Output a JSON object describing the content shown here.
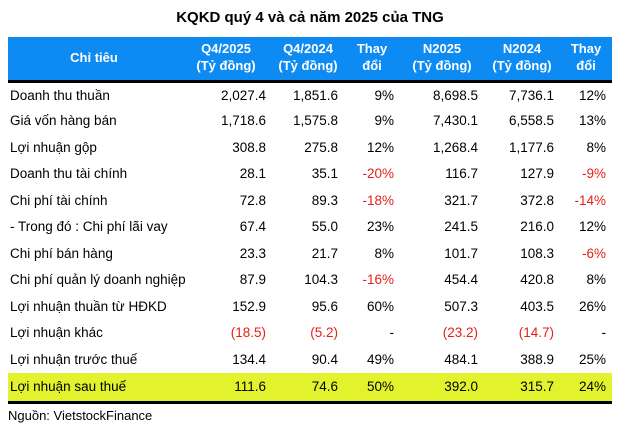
{
  "title": "KQKD quý 4 và cả năm 2025 của TNG",
  "source": "Nguồn: VietstockFinance",
  "colors": {
    "header_bg": "#0d8bf2",
    "header_text": "#ffffff",
    "highlight_row_bg": "#e2f32e",
    "negative_text": "#e32119",
    "body_text": "#000000"
  },
  "table": {
    "headers": [
      {
        "line1": "Chỉ tiêu",
        "line2": ""
      },
      {
        "line1": "Q4/2025",
        "line2": "(Tỷ đồng)"
      },
      {
        "line1": "Q4/2024",
        "line2": "(Tỷ đồng)"
      },
      {
        "line1": "Thay",
        "line2": "đổi"
      },
      {
        "line1": "N2025",
        "line2": "(Tỷ đồng)"
      },
      {
        "line1": "N2024",
        "line2": "(Tỷ đồng)"
      },
      {
        "line1": "Thay",
        "line2": "đổi"
      }
    ]
  },
  "chart_data": {
    "type": "table",
    "title": "KQKD quý 4 và cả năm 2025 của TNG",
    "columns": [
      "Chỉ tiêu",
      "Q4/2025 (Tỷ đồng)",
      "Q4/2024 (Tỷ đồng)",
      "Thay đổi",
      "N2025 (Tỷ đồng)",
      "N2024 (Tỷ đồng)",
      "Thay đổi"
    ],
    "rows": [
      [
        "Doanh thu thuần",
        "2,027.4",
        "1,851.6",
        "9%",
        "8,698.5",
        "7,736.1",
        "12%"
      ],
      [
        "Giá vốn hàng bán",
        "1,718.6",
        "1,575.8",
        "9%",
        "7,430.1",
        "6,558.5",
        "13%"
      ],
      [
        "Lợi nhuận gộp",
        "308.8",
        "275.8",
        "12%",
        "1,268.4",
        "1,177.6",
        "8%"
      ],
      [
        "Doanh thu tài chính",
        "28.1",
        "35.1",
        "-20%",
        "116.7",
        "127.9",
        "-9%"
      ],
      [
        "Chi phí tài chính",
        "72.8",
        "89.3",
        "-18%",
        "321.7",
        "372.8",
        "-14%"
      ],
      [
        "- Trong đó : Chi phí lãi vay",
        "67.4",
        "55.0",
        "23%",
        "241.5",
        "216.0",
        "12%"
      ],
      [
        "Chi phí bán hàng",
        "23.3",
        "21.7",
        "8%",
        "101.7",
        "108.3",
        "-6%"
      ],
      [
        "Chi phí quản lý doanh nghiệp",
        "87.9",
        "104.3",
        "-16%",
        "454.4",
        "420.8",
        "8%"
      ],
      [
        "Lợi nhuận thuần từ HĐKD",
        "152.9",
        "95.6",
        "60%",
        "507.3",
        "403.5",
        "26%"
      ],
      [
        "Lợi nhuận khác",
        "(18.5)",
        "(5.2)",
        "-",
        "(23.2)",
        "(14.7)",
        "-"
      ],
      [
        "Lợi nhuận trước thuế",
        "134.4",
        "90.4",
        "49%",
        "484.1",
        "388.9",
        "25%"
      ],
      [
        "Lợi nhuận sau thuế",
        "111.6",
        "74.6",
        "50%",
        "392.0",
        "315.7",
        "24%"
      ]
    ],
    "highlight_row": "Lợi nhuận sau thuế",
    "source": "Nguồn: VietstockFinance"
  }
}
